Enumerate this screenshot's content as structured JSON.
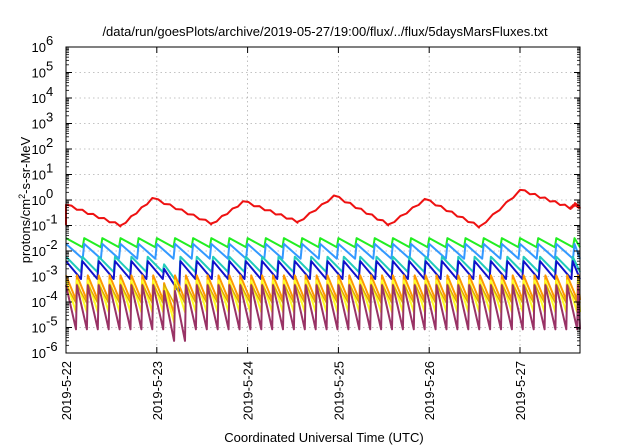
{
  "chart_data": {
    "type": "line",
    "title": "/data/run/goesPlots/archive/2019-05-27/19:00/flux/../flux/5daysMarsFluxes.txt",
    "xlabel": "Coordinated Universal Time (UTC)",
    "ylabel": "protons/cm2-s-sr-MeV",
    "ylabel_parts": {
      "pre": "protons/cm",
      "sup": "2",
      "post": "-s-sr-MeV"
    },
    "y_scale": "log",
    "ylim": [
      1e-06,
      1000000.0
    ],
    "y_ticks": [
      {
        "exp": "-6"
      },
      {
        "exp": "-5"
      },
      {
        "exp": "-4"
      },
      {
        "exp": "-3"
      },
      {
        "exp": "-2"
      },
      {
        "exp": "-1"
      },
      {
        "exp": "0"
      },
      {
        "exp": "1"
      },
      {
        "exp": "2"
      },
      {
        "exp": "3"
      },
      {
        "exp": "4"
      },
      {
        "exp": "5"
      },
      {
        "exp": "6"
      }
    ],
    "y_tick_base": "10",
    "xlim": [
      "2019-05-22",
      "2019-05-27 19:00"
    ],
    "x_ticks": [
      "2019-5-22",
      "2019-5-23",
      "2019-5-24",
      "2019-5-25",
      "2019-5-26",
      "2019-5-27"
    ],
    "grid": true,
    "colors": {
      "red": "#ee1111",
      "green": "#22ee22",
      "lightblue": "#3399ff",
      "cyan": "#22ccbb",
      "darkblue": "#1111cc",
      "orange": "#ff9900",
      "yellow": "#ffff22",
      "gold": "#ddaa00",
      "purple": "#993366"
    },
    "series_estimates": {
      "red": {
        "min": 0.08,
        "max": 2.5
      },
      "green": {
        "min": 0.012,
        "max": 0.035
      },
      "lightblue": {
        "min": 0.004,
        "max": 0.02
      },
      "cyan": {
        "min": 0.001,
        "max": 0.006
      },
      "darkblue": {
        "min": 0.0007,
        "max": 0.005
      },
      "orange": {
        "min": 0.0001,
        "max": 0.0012
      },
      "yellow": {
        "min": 3e-05,
        "max": 0.0008
      },
      "purple": {
        "min": 3e-06,
        "max": 0.0006
      }
    }
  }
}
